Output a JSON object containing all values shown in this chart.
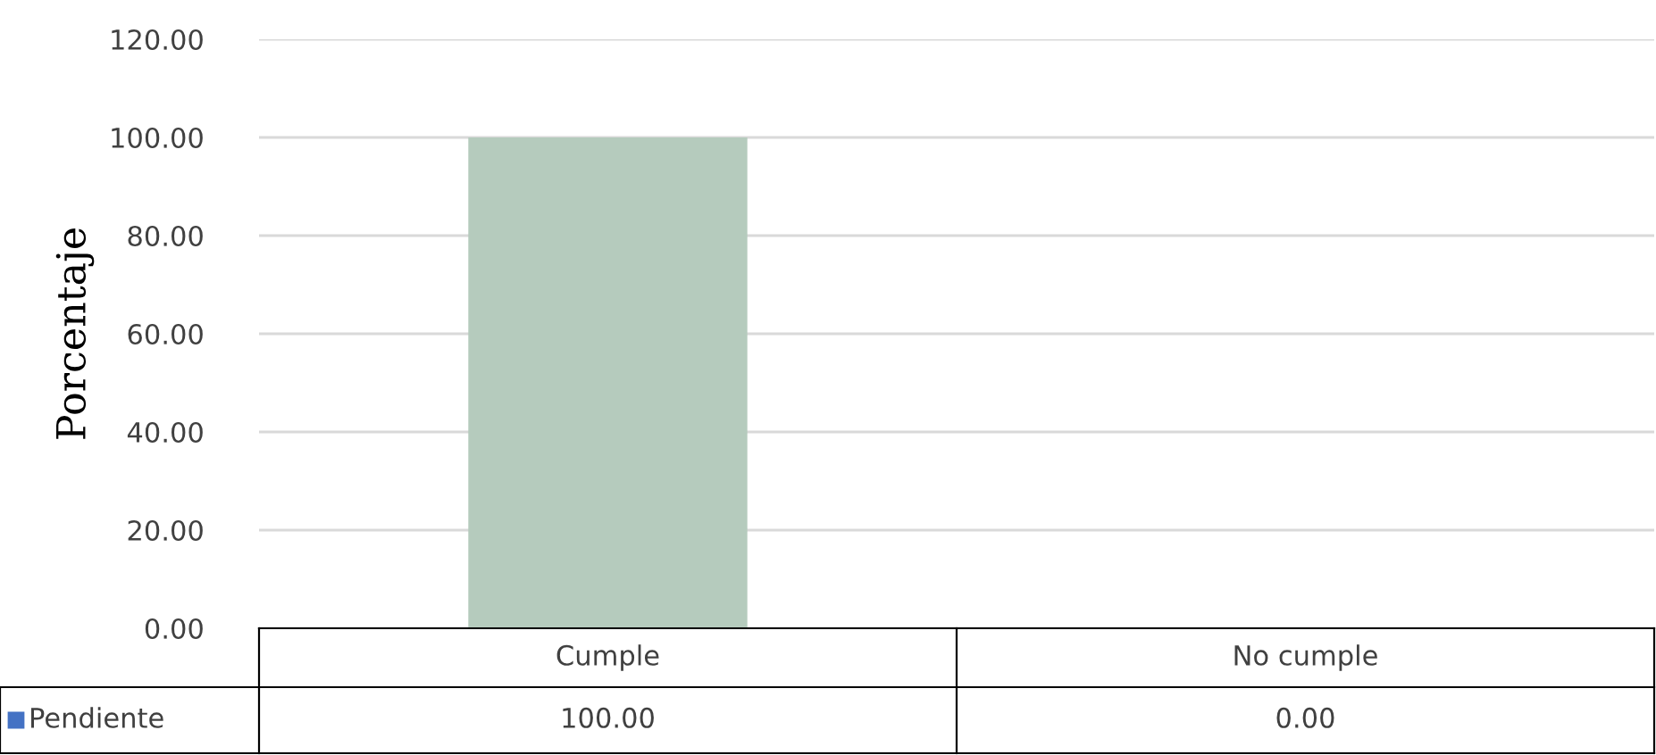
{
  "chart_data": {
    "type": "bar",
    "ylabel": "Porcentaje",
    "categories": [
      "Cumple",
      "No cumple"
    ],
    "series": [
      {
        "name": "Pendiente",
        "color": "#4472c4",
        "colors": [
          "#b5cbbd",
          "#b5cbbd"
        ],
        "values": [
          100,
          0
        ],
        "value_labels": [
          "100.00",
          "0.00"
        ]
      }
    ],
    "ylim": [
      0,
      120
    ],
    "yticks": [
      {
        "value": 0,
        "label": "0.00"
      },
      {
        "value": 20,
        "label": "20.00"
      },
      {
        "value": 40,
        "label": "40.00"
      },
      {
        "value": 60,
        "label": "60.00"
      },
      {
        "value": 80,
        "label": "80.00"
      },
      {
        "value": 100,
        "label": "100.00"
      },
      {
        "value": 120,
        "label": "120.00"
      }
    ],
    "grid": "y",
    "legend": "bottom"
  }
}
